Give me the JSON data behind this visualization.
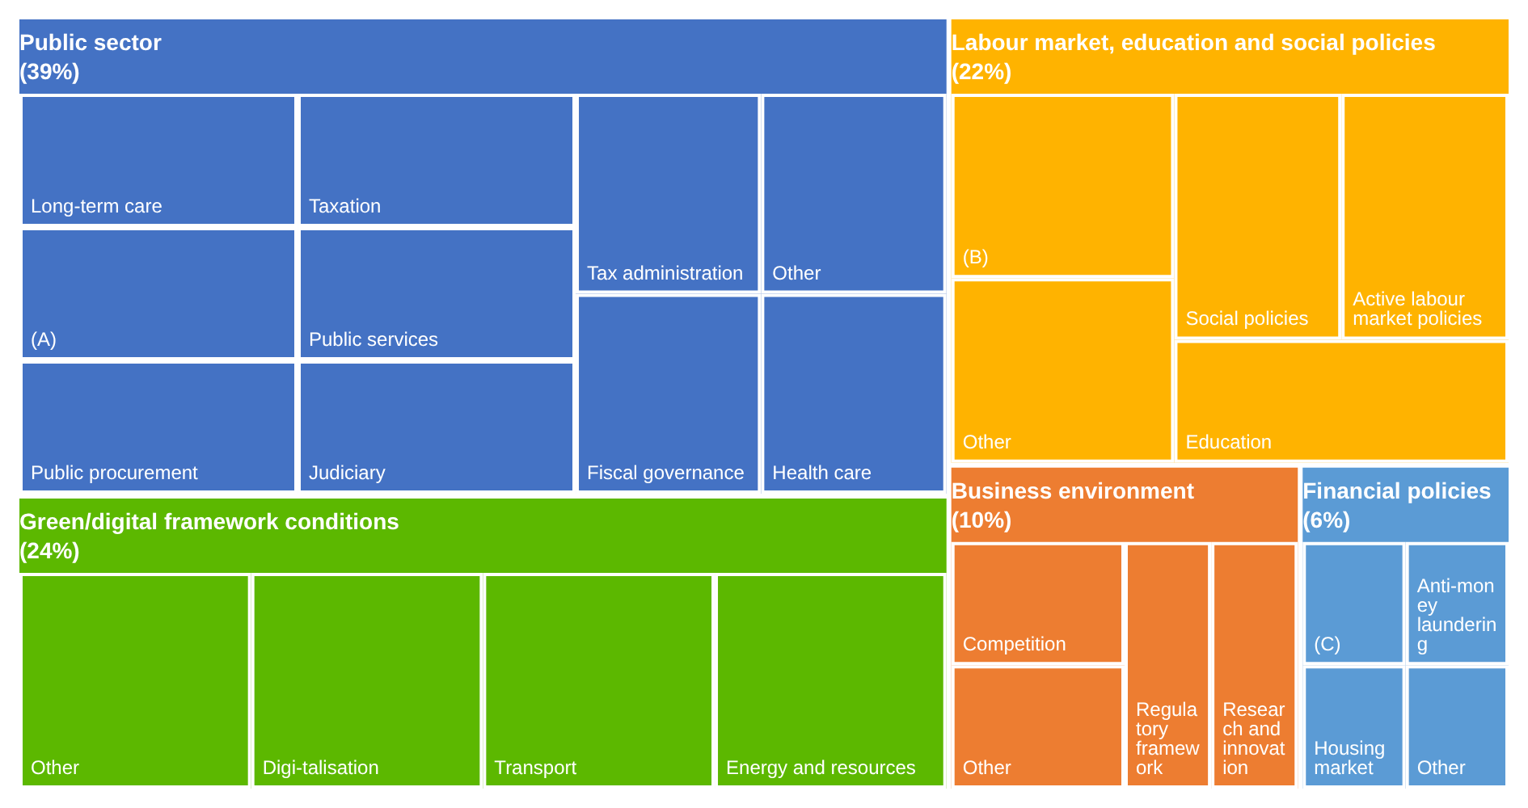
{
  "chart_data": {
    "type": "other",
    "categories": [
      "Public sector",
      "Green/digital framework conditions",
      "Labour market, education and social policies",
      "Business environment",
      "Financial policies"
    ],
    "values": [
      39,
      24,
      22,
      10,
      6
    ],
    "value_labels": [
      "(39%)",
      "(24%)",
      "(22%)",
      "(10%)",
      "(6%)"
    ],
    "colors": [
      "#4472c4",
      "#5cb800",
      "#ffb300",
      "#ed7d31",
      "#5b9bd5"
    ],
    "annotations": [
      {
        "text": "Health care",
        "x": "Public sector"
      },
      {
        "text": "Fiscal governance",
        "x": "Public sector"
      },
      {
        "text": "Other",
        "x": "Public sector"
      },
      {
        "text": "Tax administration",
        "x": "Public sector"
      },
      {
        "text": "Judiciary",
        "x": "Public sector"
      },
      {
        "text": "Public services",
        "x": "Public sector"
      },
      {
        "text": "Taxation",
        "x": "Public sector"
      },
      {
        "text": "Public procurement",
        "x": "Public sector"
      },
      {
        "text": "(A)",
        "x": "Public sector"
      },
      {
        "text": "Long-term care",
        "x": "Public sector"
      },
      {
        "text": "Energy and resources",
        "x": "Green/digital framework conditions"
      },
      {
        "text": "Transport",
        "x": "Green/digital framework conditions"
      },
      {
        "text": "Digi-talisation",
        "x": "Green/digital framework conditions"
      },
      {
        "text": "Other",
        "x": "Green/digital framework conditions"
      },
      {
        "text": "Education",
        "x": "Labour market, education and social policies"
      },
      {
        "text": "Active labour market policies",
        "x": "Labour market, education and social policies"
      },
      {
        "text": "Social policies",
        "x": "Labour market, education and social policies"
      },
      {
        "text": "Other",
        "x": "Labour market, education and social policies"
      },
      {
        "text": "(B)",
        "x": "Labour market, education and social policies"
      },
      {
        "text": "Research and innovation",
        "x": "Business environment"
      },
      {
        "text": "Regulatory framework",
        "x": "Business environment"
      },
      {
        "text": "Other",
        "x": "Business environment"
      },
      {
        "text": "Competition",
        "x": "Business environment"
      },
      {
        "text": "Other",
        "x": "Financial policies"
      },
      {
        "text": "Housing market",
        "x": "Financial policies"
      },
      {
        "text": "Anti-money laundering",
        "x": "Financial policies"
      },
      {
        "text": "(C)",
        "x": "Financial policies"
      }
    ]
  }
}
